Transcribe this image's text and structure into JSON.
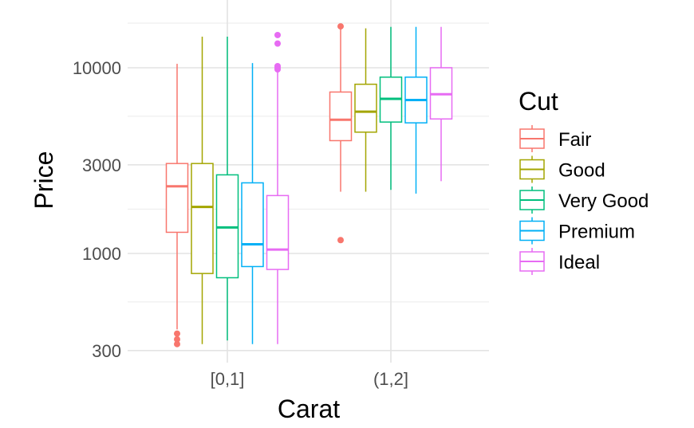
{
  "chart_data": {
    "type": "boxplot",
    "title": "",
    "xlabel": "Carat",
    "ylabel": "Price",
    "y_scale": "log10",
    "ylim": [
      300,
      17000
    ],
    "y_ticks": [
      300,
      1000,
      3000,
      10000
    ],
    "y_tick_labels": [
      "300",
      "1000",
      "3000",
      "10000"
    ],
    "categories": [
      "[0,1]",
      "(1,2]"
    ],
    "legend": {
      "title": "Cut",
      "position": "right"
    },
    "grid": true,
    "series": [
      {
        "name": "Fair",
        "color": "#F8766D",
        "boxes": [
          {
            "category": "[0,1]",
            "lower_whisker": 390,
            "q1": 1300,
            "median": 2300,
            "q3": 3050,
            "upper_whisker": 10500,
            "outliers": [
              370,
              345,
              325
            ]
          },
          {
            "category": "(1,2]",
            "lower_whisker": 2150,
            "q1": 4050,
            "median": 5250,
            "q3": 7400,
            "upper_whisker": 16600,
            "outliers": [
              1180,
              16700
            ]
          }
        ]
      },
      {
        "name": "Good",
        "color": "#A3A500",
        "boxes": [
          {
            "category": "[0,1]",
            "lower_whisker": 325,
            "q1": 780,
            "median": 1780,
            "q3": 3050,
            "upper_whisker": 14700,
            "outliers": []
          },
          {
            "category": "(1,2]",
            "lower_whisker": 2150,
            "q1": 4500,
            "median": 5800,
            "q3": 8150,
            "upper_whisker": 16300,
            "outliers": []
          }
        ]
      },
      {
        "name": "Very Good",
        "color": "#00BF7D",
        "boxes": [
          {
            "category": "[0,1]",
            "lower_whisker": 340,
            "q1": 740,
            "median": 1380,
            "q3": 2650,
            "upper_whisker": 14700,
            "outliers": []
          },
          {
            "category": "(1,2]",
            "lower_whisker": 2200,
            "q1": 5100,
            "median": 6800,
            "q3": 8900,
            "upper_whisker": 16600,
            "outliers": []
          }
        ]
      },
      {
        "name": "Premium",
        "color": "#00B0F6",
        "boxes": [
          {
            "category": "[0,1]",
            "lower_whisker": 325,
            "q1": 850,
            "median": 1120,
            "q3": 2400,
            "upper_whisker": 10600,
            "outliers": []
          },
          {
            "category": "(1,2]",
            "lower_whisker": 2100,
            "q1": 5050,
            "median": 6700,
            "q3": 8900,
            "upper_whisker": 16600,
            "outliers": []
          }
        ]
      },
      {
        "name": "Ideal",
        "color": "#E76BF3",
        "boxes": [
          {
            "category": "[0,1]",
            "lower_whisker": 325,
            "q1": 820,
            "median": 1050,
            "q3": 2050,
            "upper_whisker": 9700,
            "outliers": [
              9800,
              10000,
              10200,
              13500,
              15000
            ]
          },
          {
            "category": "(1,2]",
            "lower_whisker": 2450,
            "q1": 5300,
            "median": 7200,
            "q3": 10000,
            "upper_whisker": 16600,
            "outliers": []
          }
        ]
      }
    ]
  }
}
